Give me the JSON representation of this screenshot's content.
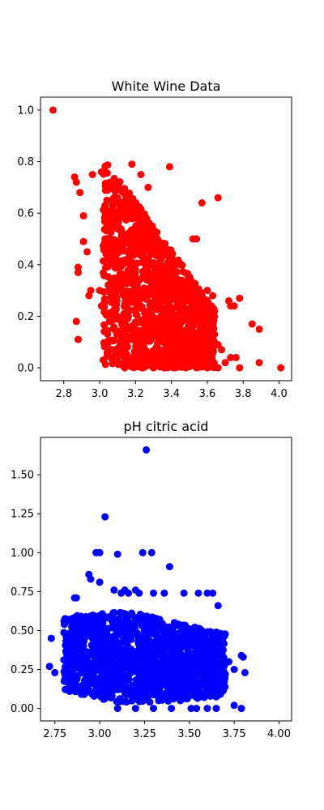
{
  "chart_data": [
    {
      "type": "scatter",
      "title": "White Wine Data",
      "xlabel": "",
      "ylabel": "",
      "color": "#ff0000",
      "xlim": [
        2.67,
        4.07
      ],
      "ylim": [
        -0.05,
        1.05
      ],
      "xticks": [
        2.8,
        3.0,
        3.2,
        3.4,
        3.6,
        3.8,
        4.0
      ],
      "xtick_labels": [
        "2.8",
        "3.0",
        "3.2",
        "3.4",
        "3.6",
        "3.8",
        "4.0"
      ],
      "yticks": [
        0.0,
        0.2,
        0.4,
        0.6,
        0.8,
        1.0
      ],
      "ytick_labels": [
        "0.0",
        "0.2",
        "0.4",
        "0.6",
        "0.8",
        "1.0"
      ],
      "grid": false,
      "points": [
        [
          2.74,
          1.0
        ],
        [
          2.86,
          0.74
        ],
        [
          2.87,
          0.72
        ],
        [
          2.89,
          0.68
        ],
        [
          2.91,
          0.59
        ],
        [
          2.96,
          0.75
        ],
        [
          3.01,
          0.76
        ],
        [
          3.05,
          0.71
        ],
        [
          3.09,
          0.72
        ],
        [
          3.04,
          0.65
        ],
        [
          3.39,
          0.78
        ],
        [
          3.57,
          0.64
        ],
        [
          3.66,
          0.66
        ],
        [
          3.18,
          0.79
        ],
        [
          3.23,
          0.75
        ],
        [
          3.27,
          0.7
        ],
        [
          2.91,
          0.49
        ],
        [
          2.93,
          0.45
        ],
        [
          2.88,
          0.39
        ],
        [
          2.88,
          0.37
        ],
        [
          2.95,
          0.3
        ],
        [
          2.94,
          0.28
        ],
        [
          3.0,
          0.3
        ],
        [
          2.87,
          0.18
        ],
        [
          2.88,
          0.11
        ],
        [
          3.02,
          0.03
        ],
        [
          3.08,
          0.02
        ],
        [
          3.01,
          0.24
        ],
        [
          3.54,
          0.5
        ],
        [
          3.52,
          0.5
        ],
        [
          3.6,
          0.3
        ],
        [
          3.63,
          0.28
        ],
        [
          3.72,
          0.26
        ],
        [
          3.73,
          0.24
        ],
        [
          3.75,
          0.24
        ],
        [
          3.78,
          0.27
        ],
        [
          3.85,
          0.17
        ],
        [
          3.89,
          0.15
        ],
        [
          3.89,
          0.02
        ],
        [
          3.78,
          0.0
        ],
        [
          4.01,
          0.0
        ],
        [
          3.73,
          0.04
        ],
        [
          3.76,
          0.04
        ],
        [
          3.68,
          0.07
        ],
        [
          3.66,
          0.09
        ],
        [
          3.64,
          0.13
        ],
        [
          3.62,
          0.15
        ],
        [
          3.58,
          0.18
        ],
        [
          3.55,
          0.2
        ],
        [
          3.5,
          0.23
        ],
        [
          3.45,
          0.26
        ],
        [
          3.41,
          0.33
        ],
        [
          3.38,
          0.4
        ],
        [
          3.35,
          0.44
        ],
        [
          3.31,
          0.48
        ],
        [
          3.28,
          0.52
        ],
        [
          3.24,
          0.55
        ],
        [
          3.2,
          0.58
        ],
        [
          3.16,
          0.6
        ],
        [
          3.13,
          0.63
        ],
        [
          3.1,
          0.66
        ],
        [
          3.07,
          0.6
        ],
        [
          3.05,
          0.55
        ],
        [
          3.03,
          0.5
        ],
        [
          3.06,
          0.45
        ],
        [
          3.08,
          0.4
        ],
        [
          3.1,
          0.35
        ],
        [
          3.12,
          0.3
        ],
        [
          3.14,
          0.25
        ],
        [
          3.16,
          0.2
        ],
        [
          3.18,
          0.15
        ],
        [
          3.2,
          0.1
        ],
        [
          3.22,
          0.05
        ],
        [
          3.24,
          0.0
        ],
        [
          3.3,
          0.0
        ],
        [
          3.36,
          0.0
        ],
        [
          3.42,
          0.0
        ],
        [
          3.48,
          0.0
        ],
        [
          3.54,
          0.0
        ],
        [
          3.6,
          0.0
        ],
        [
          3.66,
          0.0
        ],
        [
          3.7,
          0.02
        ],
        [
          3.14,
          0.0
        ],
        [
          3.12,
          0.06
        ]
      ]
    },
    {
      "type": "scatter",
      "title": "pH citric acid",
      "xlabel": "",
      "ylabel": "",
      "color": "#0000ff",
      "xlim": [
        2.67,
        4.07
      ],
      "ylim": [
        -0.08,
        1.74
      ],
      "xticks": [
        2.75,
        3.0,
        3.25,
        3.5,
        3.75,
        4.0
      ],
      "xtick_labels": [
        "2.75",
        "3.00",
        "3.25",
        "3.50",
        "3.75",
        "4.00"
      ],
      "yticks": [
        0.0,
        0.25,
        0.5,
        0.75,
        1.0,
        1.25,
        1.5
      ],
      "ytick_labels": [
        "0.00",
        "0.25",
        "0.50",
        "0.75",
        "1.00",
        "1.25",
        "1.50"
      ],
      "grid": false,
      "points": [
        [
          3.26,
          1.66
        ],
        [
          3.03,
          1.23
        ],
        [
          2.98,
          1.0
        ],
        [
          3.0,
          1.0
        ],
        [
          3.1,
          0.99
        ],
        [
          3.24,
          1.0
        ],
        [
          3.29,
          1.0
        ],
        [
          3.39,
          0.91
        ],
        [
          2.73,
          0.45
        ],
        [
          2.72,
          0.27
        ],
        [
          2.75,
          0.23
        ],
        [
          3.79,
          0.34
        ],
        [
          3.8,
          0.33
        ],
        [
          3.81,
          0.23
        ],
        [
          3.79,
          0.0
        ],
        [
          3.75,
          0.02
        ],
        [
          3.6,
          0.0
        ],
        [
          3.54,
          0.0
        ],
        [
          3.51,
          0.0
        ],
        [
          3.65,
          0.0
        ],
        [
          3.62,
          0.49
        ],
        [
          3.65,
          0.49
        ],
        [
          3.66,
          0.66
        ],
        [
          3.6,
          0.74
        ],
        [
          3.63,
          0.74
        ],
        [
          3.55,
          0.74
        ],
        [
          3.47,
          0.74
        ],
        [
          3.36,
          0.74
        ],
        [
          3.3,
          0.74
        ],
        [
          3.22,
          0.74
        ],
        [
          3.16,
          0.74
        ],
        [
          3.12,
          0.74
        ],
        [
          2.87,
          0.71
        ],
        [
          2.86,
          0.71
        ],
        [
          2.94,
          0.86
        ],
        [
          2.95,
          0.83
        ],
        [
          3.0,
          0.81
        ],
        [
          3.08,
          0.76
        ],
        [
          3.14,
          0.76
        ],
        [
          3.2,
          0.76
        ],
        [
          2.95,
          0.16
        ],
        [
          2.88,
          0.12
        ],
        [
          2.85,
          0.18
        ],
        [
          3.1,
          0.0
        ],
        [
          3.2,
          0.0
        ],
        [
          3.3,
          0.0
        ],
        [
          3.4,
          0.0
        ],
        [
          3.45,
          0.05
        ],
        [
          3.5,
          0.08
        ],
        [
          3.55,
          0.15
        ],
        [
          3.58,
          0.2
        ],
        [
          3.62,
          0.25
        ],
        [
          3.68,
          0.28
        ],
        [
          3.72,
          0.3
        ],
        [
          3.75,
          0.25
        ],
        [
          3.7,
          0.22
        ]
      ]
    }
  ]
}
